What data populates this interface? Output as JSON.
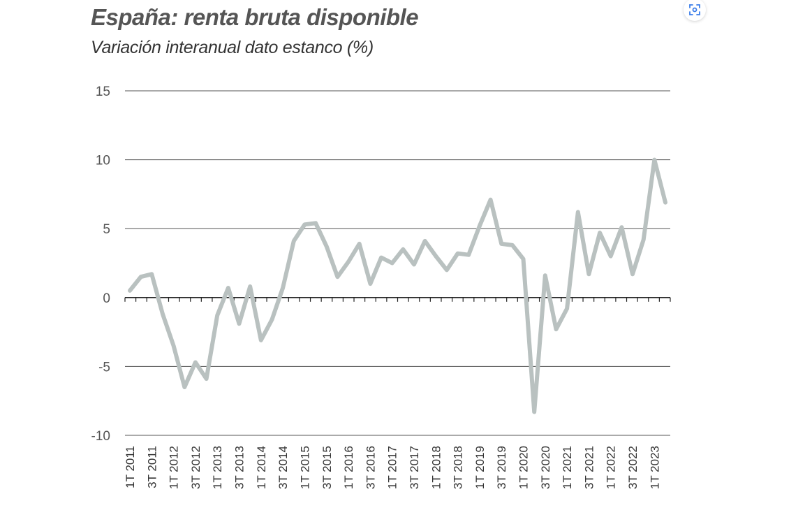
{
  "header": {
    "title": "España: renta bruta disponible",
    "subtitle": "Variación interanual dato estanco (%)"
  },
  "toolbar": {
    "icon": "visual-search-icon"
  },
  "colors": {
    "line": "#b9c1c0",
    "grid": "#555555",
    "text": "#555555"
  },
  "chart_data": {
    "type": "line",
    "title": "España: renta bruta disponible",
    "subtitle": "Variación interanual dato estanco (%)",
    "ylim": [
      -10,
      15
    ],
    "yticks": [
      15,
      10,
      5,
      0,
      -5,
      -10
    ],
    "grid": true,
    "x": [
      "1T 2011",
      "2T 2011",
      "3T 2011",
      "4T 2011",
      "1T 2012",
      "2T 2012",
      "3T 2012",
      "4T 2012",
      "1T 2013",
      "2T 2013",
      "3T 2013",
      "4T 2013",
      "1T 2014",
      "2T 2014",
      "3T 2014",
      "4T 2014",
      "1T 2015",
      "2T 2015",
      "3T 2015",
      "4T 2015",
      "1T 2016",
      "2T 2016",
      "3T 2016",
      "4T 2016",
      "1T 2017",
      "2T 2017",
      "3T 2017",
      "4T 2017",
      "1T 2018",
      "2T 2018",
      "3T 2018",
      "4T 2018",
      "1T 2019",
      "2T 2019",
      "3T 2019",
      "4T 2019",
      "1T 2020",
      "2T 2020",
      "3T 2020",
      "4T 2020",
      "1T 2021",
      "2T 2021",
      "3T 2021",
      "4T 2021",
      "1T 2022",
      "2T 2022",
      "3T 2022",
      "4T 2022",
      "1T 2023",
      "2T 2023"
    ],
    "xtick_labels": [
      "1T 2011",
      "3T 2011",
      "1T 2012",
      "3T 2012",
      "1T 2013",
      "3T 2013",
      "1T 2014",
      "3T 2014",
      "1T 2015",
      "3T 2015",
      "1T 2016",
      "3T 2016",
      "1T 2017",
      "3T 2017",
      "1T 2018",
      "3T 2018",
      "1T 2019",
      "3T 2019",
      "1T 2020",
      "3T 2020",
      "1T 2021",
      "3T 2021",
      "1T 2022",
      "3T 2022",
      "1T 2023"
    ],
    "series": [
      {
        "values": [
          0.5,
          1.5,
          1.7,
          -1.2,
          -3.5,
          -6.5,
          -4.7,
          -5.9,
          -1.3,
          0.7,
          -1.9,
          0.8,
          -3.1,
          -1.6,
          0.7,
          4.1,
          5.3,
          5.4,
          3.7,
          1.5,
          2.6,
          3.9,
          1.0,
          2.9,
          2.5,
          3.5,
          2.4,
          4.1,
          3.0,
          2.0,
          3.2,
          3.1,
          5.2,
          7.1,
          3.9,
          3.8,
          2.8,
          -8.3,
          1.6,
          -2.3,
          -0.8,
          6.2,
          1.7,
          4.7,
          3.0,
          5.1,
          1.7,
          4.2,
          10.0,
          6.9
        ]
      }
    ]
  }
}
